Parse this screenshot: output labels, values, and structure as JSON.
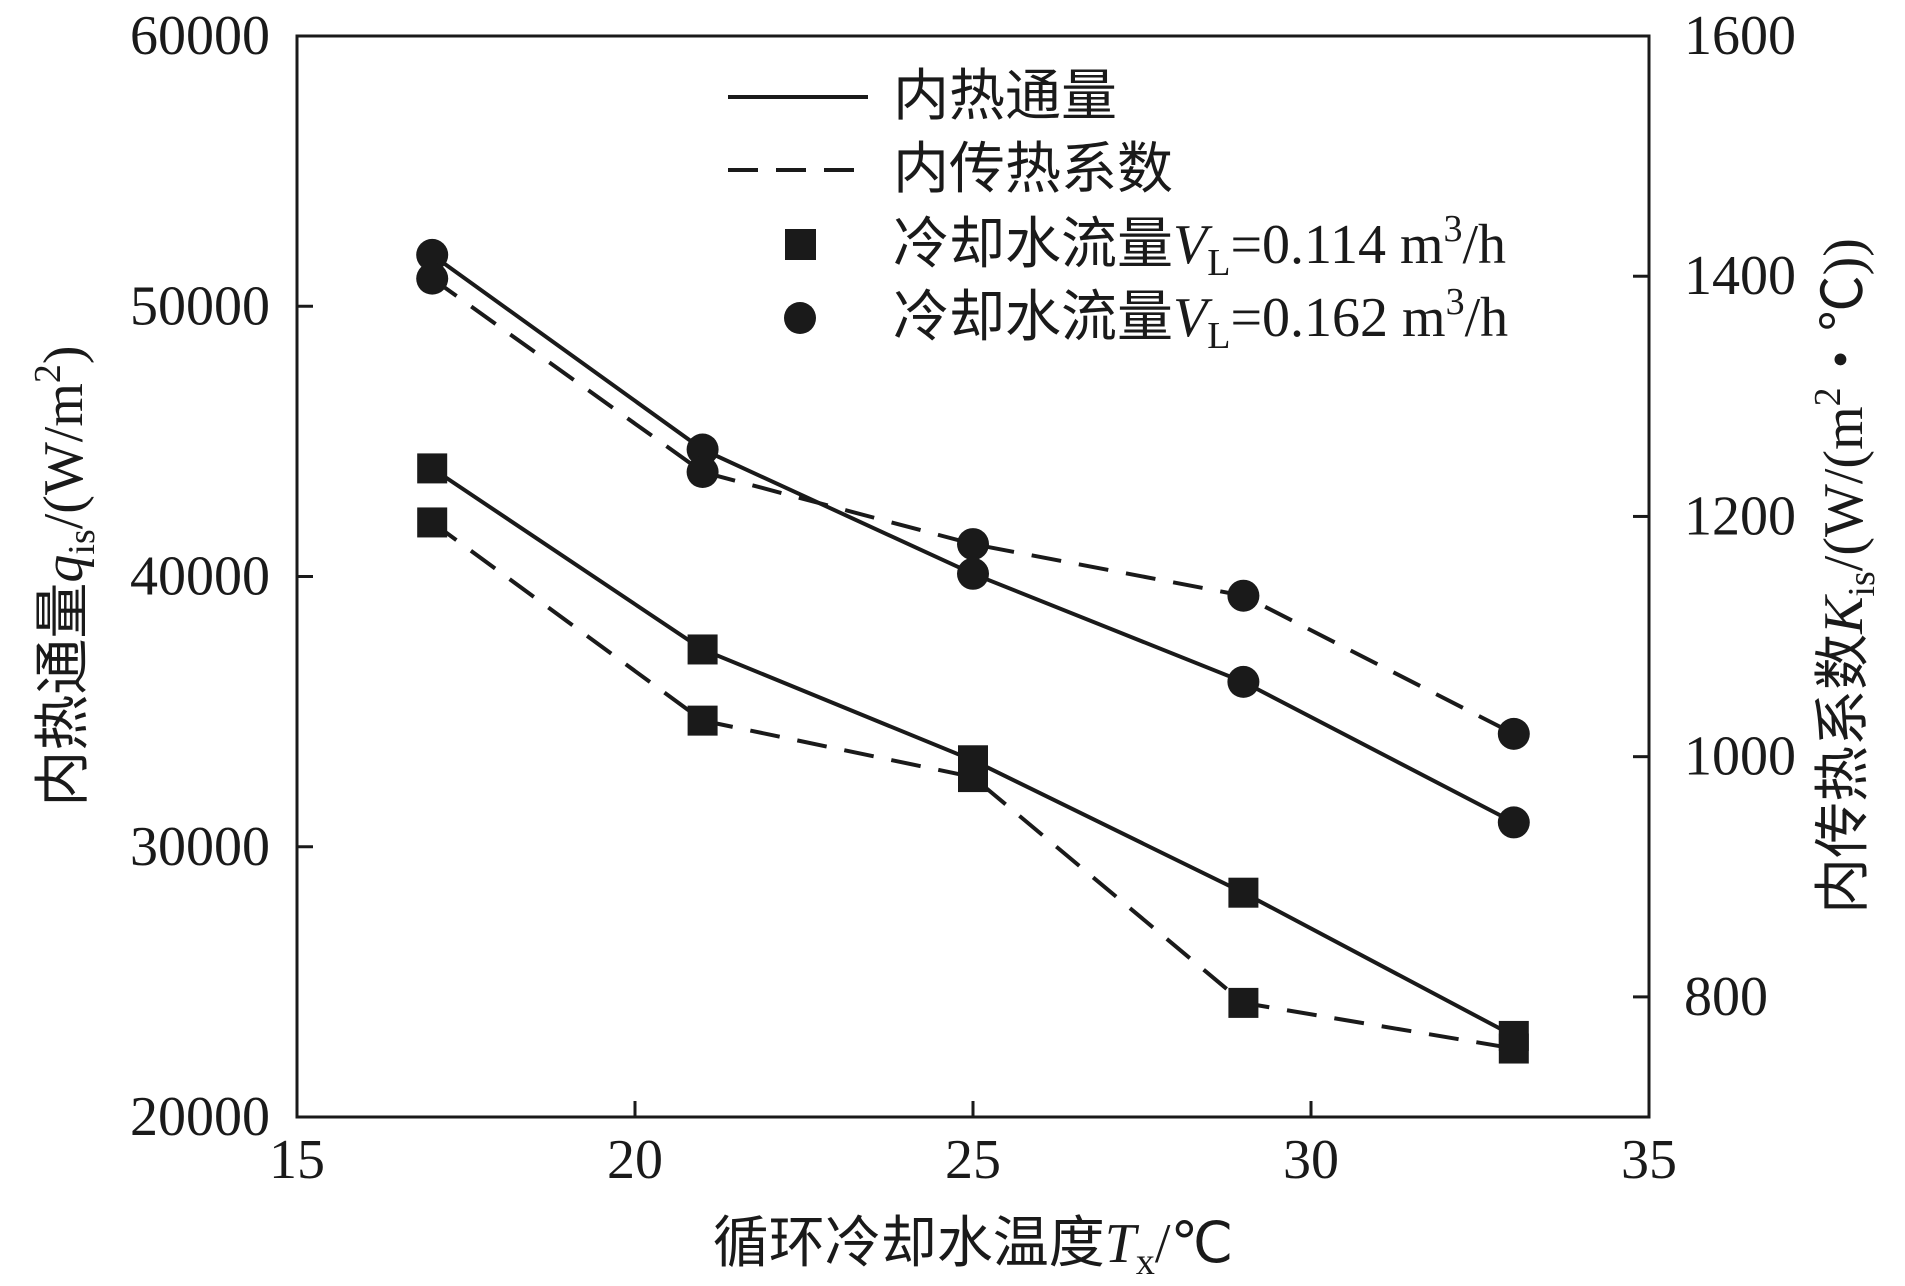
{
  "chart_data": {
    "type": "line",
    "xlabel": {
      "main": "循环冷却水温度",
      "var": "T",
      "sub": "x",
      "unit": "/℃"
    },
    "ylabel_left": {
      "main": "内热通量",
      "var": "q",
      "sub": "is",
      "unit_pre": "/(W/m",
      "unit_sup": "2",
      "unit_post": ")"
    },
    "ylabel_right": {
      "main": "内传热系数",
      "var": "K",
      "sub": "is",
      "unit_pre": "/(W/(m",
      "unit_sup": "2",
      "unit_post": "・℃))"
    },
    "xlim": [
      15,
      35
    ],
    "ylim_left": [
      20000,
      60000
    ],
    "ylim_right": [
      700,
      1600
    ],
    "x_ticks": [
      15,
      20,
      25,
      30,
      35
    ],
    "y_left_ticks": [
      20000,
      30000,
      40000,
      50000,
      60000
    ],
    "y_right_ticks": [
      800,
      1000,
      1200,
      1400,
      1600
    ],
    "legend": {
      "position": "top-right",
      "line_solid": "内热通量",
      "line_dashed": "内传热系数",
      "marker_square": {
        "text": "冷却水流量",
        "var": "V",
        "sub": "L",
        "value": "=0.114 m",
        "sup": "3",
        "post": "/h"
      },
      "marker_circle": {
        "text": "冷却水流量",
        "var": "V",
        "sub": "L",
        "value": "=0.162 m",
        "sup": "3",
        "post": "/h"
      }
    },
    "series": [
      {
        "quantity": "内热通量",
        "flow": "0.114",
        "axis": "left",
        "style": "solid",
        "marker": "square",
        "x": [
          17,
          21,
          25,
          29,
          33
        ],
        "y": [
          44000,
          37300,
          33200,
          28300,
          23000
        ]
      },
      {
        "quantity": "内传热系数",
        "flow": "0.114",
        "axis": "right",
        "style": "dashed",
        "marker": "square",
        "x": [
          17,
          21,
          25,
          29,
          33
        ],
        "y": [
          1195,
          1030,
          983,
          795,
          757
        ]
      },
      {
        "quantity": "内热通量",
        "flow": "0.162",
        "axis": "left",
        "style": "solid",
        "marker": "circle",
        "x": [
          17,
          21,
          25,
          29,
          33
        ],
        "y": [
          51900,
          44700,
          40100,
          36100,
          30900
        ]
      },
      {
        "quantity": "内传热系数",
        "flow": "0.162",
        "axis": "right",
        "style": "dashed",
        "marker": "circle",
        "x": [
          17,
          21,
          25,
          29,
          33
        ],
        "y": [
          1398,
          1237,
          1177,
          1134,
          1019
        ]
      }
    ],
    "colors": {
      "ink": "#1a1a1a",
      "background": "#ffffff"
    }
  }
}
